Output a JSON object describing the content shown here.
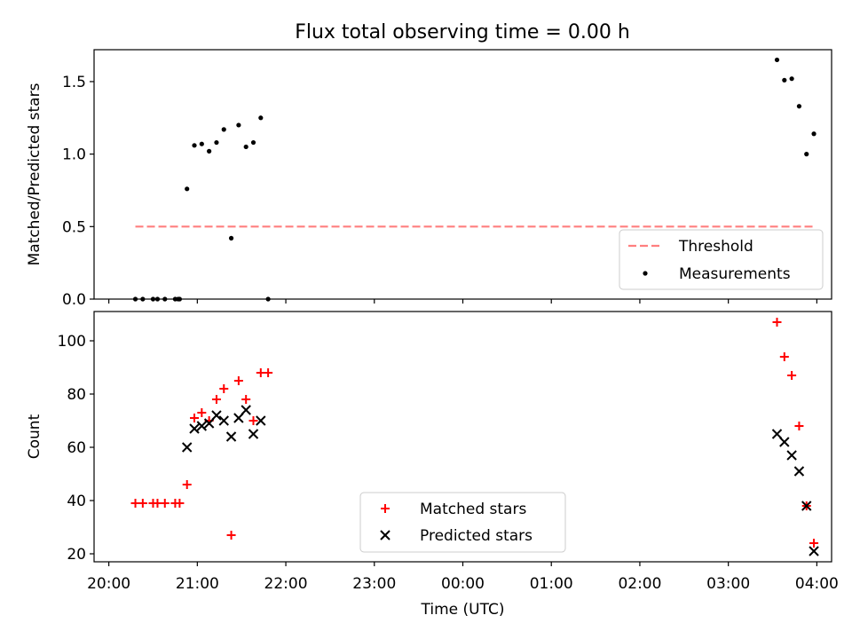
{
  "figure": {
    "title": "Flux total observing time = 0.00 h"
  },
  "chart_data": [
    {
      "type": "scatter",
      "panel": "top",
      "ylabel": "Matched/Predicted stars",
      "xlabel": "",
      "ylim": [
        0,
        1.72
      ],
      "yticks": [
        0.0,
        0.5,
        1.0,
        1.5
      ],
      "ytick_labels": [
        "0.0",
        "0.5",
        "1.0",
        "1.5"
      ],
      "legend": {
        "placement": "lower right",
        "entries": [
          "Threshold",
          "Measurements"
        ]
      },
      "threshold": {
        "name": "Threshold",
        "value": 0.5,
        "color": "#ff7f7f",
        "style": "dashed",
        "x_start": "20:18",
        "x_end": "03:58"
      },
      "series": [
        {
          "name": "Measurements",
          "color": "#000000",
          "marker": "dot",
          "points": [
            {
              "x": "20:18",
              "y": 0.0
            },
            {
              "x": "20:23",
              "y": 0.0
            },
            {
              "x": "20:30",
              "y": 0.0
            },
            {
              "x": "20:33",
              "y": 0.0
            },
            {
              "x": "20:38",
              "y": 0.0
            },
            {
              "x": "20:45",
              "y": 0.0
            },
            {
              "x": "20:47",
              "y": 0.0
            },
            {
              "x": "20:48",
              "y": 0.0
            },
            {
              "x": "20:53",
              "y": 0.76
            },
            {
              "x": "20:58",
              "y": 1.06
            },
            {
              "x": "21:03",
              "y": 1.07
            },
            {
              "x": "21:08",
              "y": 1.02
            },
            {
              "x": "21:13",
              "y": 1.08
            },
            {
              "x": "21:18",
              "y": 1.17
            },
            {
              "x": "21:23",
              "y": 0.42
            },
            {
              "x": "21:28",
              "y": 1.2
            },
            {
              "x": "21:33",
              "y": 1.05
            },
            {
              "x": "21:38",
              "y": 1.08
            },
            {
              "x": "21:43",
              "y": 1.25
            },
            {
              "x": "21:48",
              "y": 0.0
            },
            {
              "x": "03:33",
              "y": 1.65
            },
            {
              "x": "03:38",
              "y": 1.51
            },
            {
              "x": "03:43",
              "y": 1.52
            },
            {
              "x": "03:48",
              "y": 1.33
            },
            {
              "x": "03:53",
              "y": 1.0
            },
            {
              "x": "03:58",
              "y": 1.14
            }
          ]
        }
      ]
    },
    {
      "type": "scatter",
      "panel": "bottom",
      "ylabel": "Count",
      "xlabel": "Time (UTC)",
      "ylim": [
        17,
        111
      ],
      "yticks": [
        20,
        40,
        60,
        80,
        100
      ],
      "ytick_labels": [
        "20",
        "40",
        "60",
        "80",
        "100"
      ],
      "x_range": [
        "20:00",
        "04:00"
      ],
      "xtick_labels": [
        "20:00",
        "21:00",
        "22:00",
        "23:00",
        "00:00",
        "01:00",
        "02:00",
        "03:00",
        "04:00"
      ],
      "legend": {
        "placement": "lower center",
        "entries": [
          "Matched stars",
          "Predicted stars"
        ]
      },
      "series": [
        {
          "name": "Matched stars",
          "color": "#ff0000",
          "marker": "plus",
          "points": [
            {
              "x": "20:18",
              "y": 39
            },
            {
              "x": "20:23",
              "y": 39
            },
            {
              "x": "20:30",
              "y": 39
            },
            {
              "x": "20:33",
              "y": 39
            },
            {
              "x": "20:38",
              "y": 39
            },
            {
              "x": "20:45",
              "y": 39
            },
            {
              "x": "20:48",
              "y": 39
            },
            {
              "x": "20:53",
              "y": 46
            },
            {
              "x": "20:58",
              "y": 71
            },
            {
              "x": "21:03",
              "y": 73
            },
            {
              "x": "21:08",
              "y": 70
            },
            {
              "x": "21:13",
              "y": 78
            },
            {
              "x": "21:18",
              "y": 82
            },
            {
              "x": "21:23",
              "y": 27
            },
            {
              "x": "21:28",
              "y": 85
            },
            {
              "x": "21:33",
              "y": 78
            },
            {
              "x": "21:38",
              "y": 70
            },
            {
              "x": "21:43",
              "y": 88
            },
            {
              "x": "21:48",
              "y": 88
            },
            {
              "x": "03:33",
              "y": 107
            },
            {
              "x": "03:38",
              "y": 94
            },
            {
              "x": "03:43",
              "y": 87
            },
            {
              "x": "03:48",
              "y": 68
            },
            {
              "x": "03:53",
              "y": 38
            },
            {
              "x": "03:58",
              "y": 24
            }
          ]
        },
        {
          "name": "Predicted stars",
          "color": "#000000",
          "marker": "x",
          "points": [
            {
              "x": "20:53",
              "y": 60
            },
            {
              "x": "20:58",
              "y": 67
            },
            {
              "x": "21:03",
              "y": 68
            },
            {
              "x": "21:08",
              "y": 69
            },
            {
              "x": "21:13",
              "y": 72
            },
            {
              "x": "21:18",
              "y": 70
            },
            {
              "x": "21:23",
              "y": 64
            },
            {
              "x": "21:28",
              "y": 71
            },
            {
              "x": "21:33",
              "y": 74
            },
            {
              "x": "21:38",
              "y": 65
            },
            {
              "x": "21:43",
              "y": 70
            },
            {
              "x": "03:33",
              "y": 65
            },
            {
              "x": "03:38",
              "y": 62
            },
            {
              "x": "03:43",
              "y": 57
            },
            {
              "x": "03:48",
              "y": 51
            },
            {
              "x": "03:53",
              "y": 38
            },
            {
              "x": "03:58",
              "y": 21
            }
          ]
        }
      ]
    }
  ]
}
